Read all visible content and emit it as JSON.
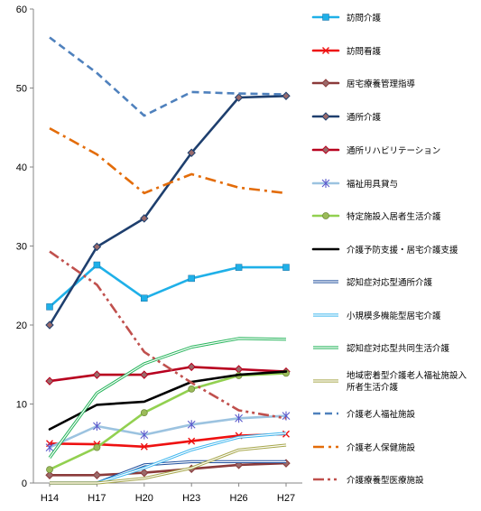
{
  "chart_data": {
    "type": "line",
    "categories": [
      "H14",
      "H17",
      "H20",
      "H23",
      "H26",
      "H27"
    ],
    "ylim": [
      0,
      60
    ],
    "yticks": [
      0,
      10,
      20,
      30,
      40,
      50,
      60
    ],
    "grid": false,
    "legend_position": "right",
    "series": [
      {
        "name": "訪問介護",
        "values": [
          22.3,
          27.6,
          23.4,
          25.9,
          27.3,
          27.3
        ],
        "color": "#1FB0E8",
        "dash": "solid",
        "marker": "square"
      },
      {
        "name": "訪問看護",
        "values": [
          5.0,
          4.9,
          4.6,
          5.3,
          6.0,
          6.2
        ],
        "color": "#EE1111",
        "dash": "solid",
        "marker": "x"
      },
      {
        "name": "居宅療養管理指導",
        "values": [
          1.0,
          1.0,
          1.3,
          1.8,
          2.3,
          2.5
        ],
        "color": "#8B3A3A",
        "dash": "solid",
        "marker": "diamond"
      },
      {
        "name": "通所介護",
        "values": [
          20.0,
          29.9,
          33.5,
          41.8,
          48.8,
          49.0
        ],
        "color": "#1E3F6E",
        "dash": "solid",
        "marker": "diamond"
      },
      {
        "name": "通所リハビリテーション",
        "values": [
          12.9,
          13.7,
          13.7,
          14.7,
          14.4,
          14.1
        ],
        "color": "#B8001F",
        "dash": "solid",
        "marker": "diamond"
      },
      {
        "name": "福祉用具貸与",
        "values": [
          4.5,
          7.2,
          6.1,
          7.4,
          8.2,
          8.5
        ],
        "color": "#9CC3E0",
        "dash": "solid",
        "marker": "star"
      },
      {
        "name": "特定施設入居者生活介護",
        "values": [
          1.7,
          4.5,
          8.9,
          11.9,
          13.6,
          13.9
        ],
        "color": "#92D050",
        "dash": "solid",
        "marker": "circle"
      },
      {
        "name": "介護予防支援・居宅介護支援",
        "values": [
          6.8,
          9.9,
          10.3,
          12.8,
          13.7,
          14.1
        ],
        "color": "#000000",
        "dash": "solid",
        "marker": "none"
      },
      {
        "name": "認知症対応型通所介護",
        "values": [
          0,
          0,
          2.3,
          2.7,
          2.7,
          2.7
        ],
        "color": "#1F4E9C",
        "dash": "double",
        "marker": "none"
      },
      {
        "name": "小規模多機能型居宅介護",
        "values": [
          0,
          0,
          1.9,
          4.2,
          5.8,
          6.3
        ],
        "color": "#3FB6EE",
        "dash": "double",
        "marker": "none"
      },
      {
        "name": "認知症対応型共同生活介護",
        "values": [
          3.2,
          11.4,
          15.1,
          17.2,
          18.3,
          18.2
        ],
        "color": "#25B45A",
        "dash": "double",
        "marker": "none"
      },
      {
        "name": "地域密着型介護老人福祉施設入所者生活介護",
        "values": [
          0,
          0,
          0.6,
          1.9,
          4.2,
          4.8
        ],
        "color": "#A6A64A",
        "dash": "double",
        "marker": "none"
      },
      {
        "name": "介護老人福祉施設",
        "values": [
          56.4,
          51.9,
          46.5,
          49.5,
          49.3,
          49.2
        ],
        "color": "#4F81BD",
        "dash": "dash",
        "marker": "none"
      },
      {
        "name": "介護老人保健施設",
        "values": [
          44.9,
          41.6,
          36.7,
          39.1,
          37.4,
          36.7
        ],
        "color": "#E36C09",
        "dash": "dashdot",
        "marker": "none"
      },
      {
        "name": "介護療養型医療施設",
        "values": [
          29.3,
          25.1,
          16.6,
          12.7,
          9.2,
          8.2
        ],
        "color": "#C0504D",
        "dash": "dashdotdot",
        "marker": "none"
      }
    ]
  }
}
